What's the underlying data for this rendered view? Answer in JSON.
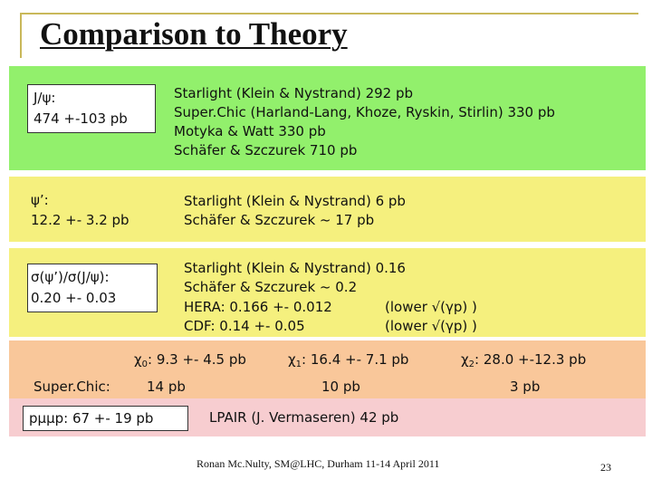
{
  "title": "Comparison to Theory",
  "jpsi": {
    "label_line1": "J/ψ:",
    "label_line2": "474 +-103 pb",
    "predictions": [
      "Starlight (Klein & Nystrand) 292 pb",
      "Super.Chic (Harland-Lang, Khoze, Ryskin, Stirlin) 330 pb",
      "Motyka & Watt 330 pb",
      "Schäfer & Szczurek 710 pb"
    ]
  },
  "psi2s": {
    "label_line1": "ψ’:",
    "label_line2": "12.2 +- 3.2 pb",
    "predictions": [
      "Starlight (Klein & Nystrand) 6 pb",
      "Schäfer & Szczurek ~ 17 pb"
    ]
  },
  "ratio": {
    "label_line1": "σ(ψ’)/σ(J/ψ):",
    "label_line2": "0.20 +- 0.03",
    "predictions": [
      "Starlight (Klein & Nystrand) 0.16",
      "Schäfer & Szczurek ~ 0.2"
    ],
    "hera": "HERA: 0.166 +- 0.012",
    "hera_note": "(lower √(γp) )",
    "cdf": "CDF: 0.14 +- 0.05",
    "cdf_note": "(lower √(γp) )"
  },
  "chi": {
    "chi0_symbol": "χ",
    "chi0_sub": "0",
    "chi0_value": ": 9.3 +- 4.5 pb",
    "chi1_symbol": "χ",
    "chi1_sub": "1",
    "chi1_value": ": 16.4 +- 7.1 pb",
    "chi2_symbol": "χ",
    "chi2_sub": "2",
    "chi2_value": ":  28.0 +-12.3 pb",
    "superchic_label": "Super.Chic:",
    "superchic_chi0": "14 pb",
    "superchic_chi1": "10 pb",
    "superchic_chi2": "3 pb"
  },
  "pmumup": {
    "label": "pμμp: 67 +- 19 pb",
    "lpair": "LPAIR (J. Vermaseren)  42 pb"
  },
  "footer": "Ronan Mc.Nulty, SM@LHC, Durham 11-14 April 2011",
  "page_number": "23",
  "colors": {
    "green_band": "#92f06c",
    "yellow_band": "#f5f07e",
    "orange_band": "#f9c79a",
    "pink_band": "#f7cdd0",
    "frame": "#c9b85a"
  }
}
